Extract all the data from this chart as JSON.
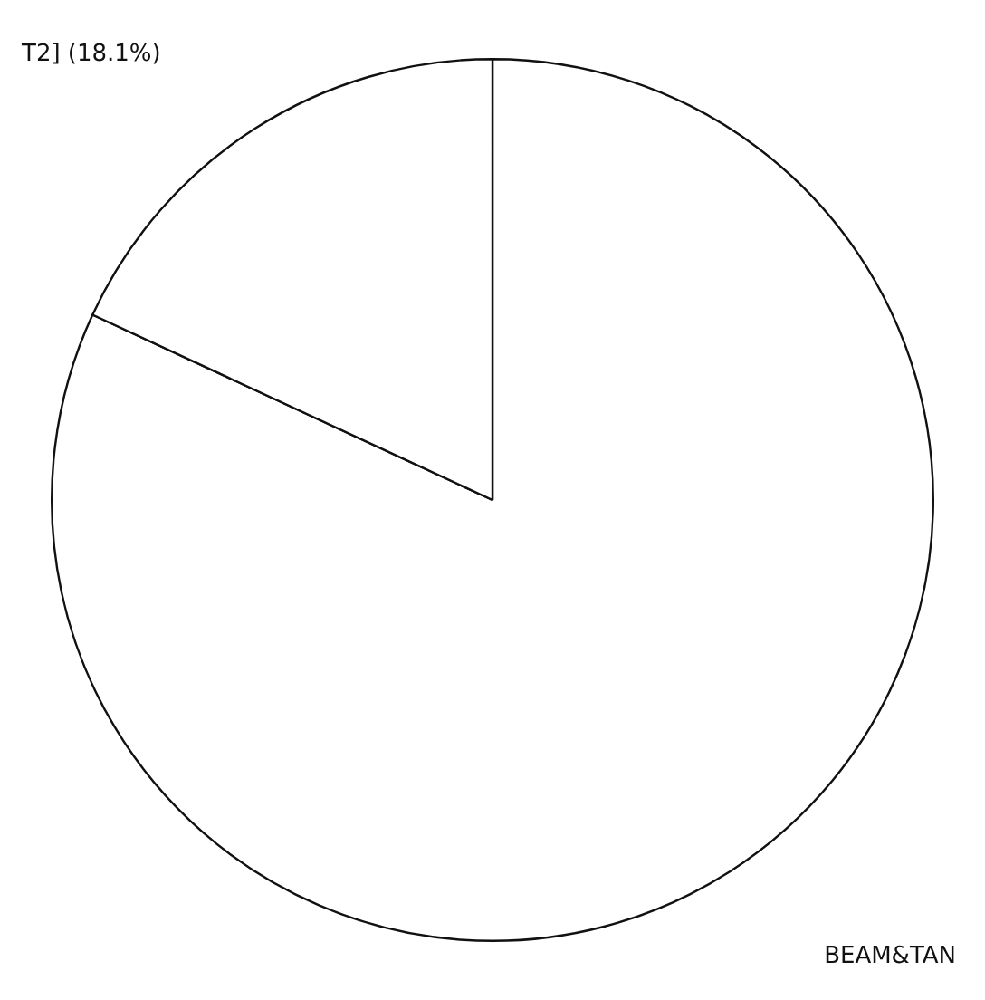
{
  "chart_data": {
    "type": "pie",
    "categories": [
      "BEAM&TAN",
      "T2]"
    ],
    "values": [
      81.9,
      18.1
    ],
    "colors": [
      "#ffffff",
      "#ffffff"
    ],
    "value_labels": [
      null,
      "(18.1%)"
    ],
    "legend": false
  }
}
